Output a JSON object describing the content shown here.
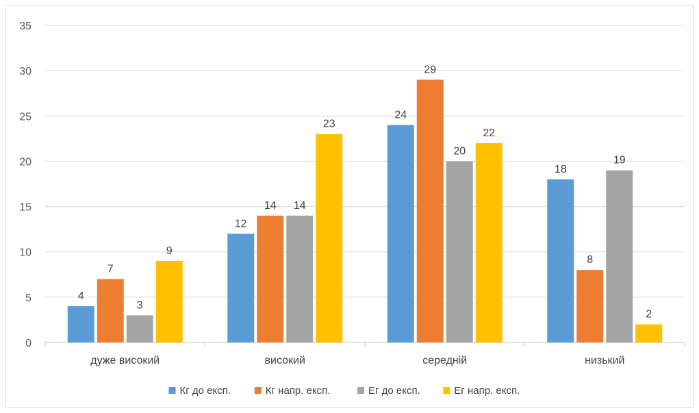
{
  "chart_data": {
    "type": "bar",
    "title": "",
    "xlabel": "",
    "ylabel": "",
    "ylim": [
      0,
      35
    ],
    "yticks": [
      0,
      5,
      10,
      15,
      20,
      25,
      30,
      35
    ],
    "grid": true,
    "legend_position": "bottom",
    "categories": [
      "дуже високий",
      "високий",
      "середній",
      "низький"
    ],
    "series": [
      {
        "name": "Кг до експ.",
        "color": "#5b9bd5",
        "values": [
          4,
          12,
          24,
          18
        ]
      },
      {
        "name": "Кг напр. експ.",
        "color": "#ed7d31",
        "values": [
          7,
          14,
          29,
          8
        ]
      },
      {
        "name": "Ег до експ.",
        "color": "#a5a5a5",
        "values": [
          3,
          14,
          20,
          19
        ]
      },
      {
        "name": "Ег напр. експ.",
        "color": "#ffc000",
        "values": [
          9,
          23,
          22,
          2
        ]
      }
    ]
  }
}
